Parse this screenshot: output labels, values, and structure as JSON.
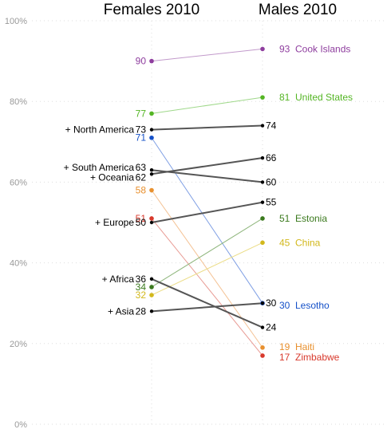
{
  "chart_data": {
    "type": "slope",
    "left_title": "Females 2010",
    "right_title": "Males 2010",
    "y_ticks": [
      "0%",
      "20%",
      "40%",
      "60%",
      "80%",
      "100%"
    ],
    "y_tick_values": [
      0,
      20,
      40,
      60,
      80,
      100
    ],
    "ylim": [
      0,
      100
    ],
    "series": [
      {
        "name": "Cook Islands",
        "prefix": "",
        "left": 90,
        "right": 93,
        "left_label": "90",
        "right_label": "93",
        "show_left_name": false,
        "show_right_name": true,
        "color": "#8e3d9e",
        "line_color": "#c29acb",
        "line_width": 1
      },
      {
        "name": "United States",
        "prefix": "",
        "left": 77,
        "right": 81,
        "left_label": "77",
        "right_label": "81",
        "show_left_name": false,
        "show_right_name": true,
        "color": "#54b524",
        "line_color": "#9fd88a",
        "line_width": 1
      },
      {
        "name": "North America",
        "prefix": "+",
        "left": 73,
        "right": 74,
        "left_label": "73",
        "right_label": "74",
        "show_left_name": true,
        "show_right_name": false,
        "color": "#000000",
        "line_color": "#555555",
        "line_width": 2
      },
      {
        "name": "Lesotho",
        "prefix": "",
        "left": 71,
        "right": 30,
        "left_label": "71",
        "right_label": "30",
        "show_left_name": false,
        "show_right_name": true,
        "color": "#1450c8",
        "line_color": "#7f9fe4",
        "line_width": 1
      },
      {
        "name": "South America",
        "prefix": "+",
        "left": 63,
        "right": 60,
        "left_label": "63",
        "right_label": "60",
        "show_left_name": true,
        "show_right_name": false,
        "color": "#000000",
        "line_color": "#555555",
        "line_width": 2
      },
      {
        "name": "Oceania",
        "prefix": "+",
        "left": 62,
        "right": 66,
        "left_label": "62",
        "right_label": "66",
        "show_left_name": true,
        "show_right_name": false,
        "color": "#000000",
        "line_color": "#555555",
        "line_width": 2
      },
      {
        "name": "Haiti",
        "prefix": "",
        "left": 58,
        "right": 19,
        "left_label": "58",
        "right_label": "19",
        "show_left_name": false,
        "show_right_name": true,
        "color": "#e8902e",
        "line_color": "#f4c294",
        "line_width": 1
      },
      {
        "name": "Zimbabwe",
        "prefix": "",
        "left": 51,
        "right": 17,
        "left_label": "51",
        "right_label": "17",
        "show_left_name": false,
        "show_right_name": true,
        "color": "#d8392c",
        "line_color": "#e89a93",
        "line_width": 1
      },
      {
        "name": "Europe",
        "prefix": "+",
        "left": 50,
        "right": 55,
        "left_label": "50",
        "right_label": "55",
        "show_left_name": true,
        "show_right_name": false,
        "color": "#000000",
        "line_color": "#555555",
        "line_width": 2
      },
      {
        "name": "Africa",
        "prefix": "+",
        "left": 36,
        "right": 24,
        "left_label": "36",
        "right_label": "24",
        "show_left_name": true,
        "show_right_name": false,
        "color": "#000000",
        "line_color": "#555555",
        "line_width": 2
      },
      {
        "name": "Estonia",
        "prefix": "",
        "left": 34,
        "right": 51,
        "left_label": "34",
        "right_label": "51",
        "show_left_name": false,
        "show_right_name": true,
        "color": "#3b7a1e",
        "line_color": "#8fb67d",
        "line_width": 1
      },
      {
        "name": "China",
        "prefix": "",
        "left": 32,
        "right": 45,
        "left_label": "32",
        "right_label": "45",
        "show_left_name": false,
        "show_right_name": true,
        "color": "#d2b81c",
        "line_color": "#ebdc85",
        "line_width": 1
      },
      {
        "name": "Asia",
        "prefix": "+",
        "left": 28,
        "right": 30,
        "left_label": "28",
        "right_label": "30",
        "show_left_name": true,
        "show_right_name": false,
        "color": "#000000",
        "line_color": "#555555",
        "line_width": 2
      }
    ]
  }
}
